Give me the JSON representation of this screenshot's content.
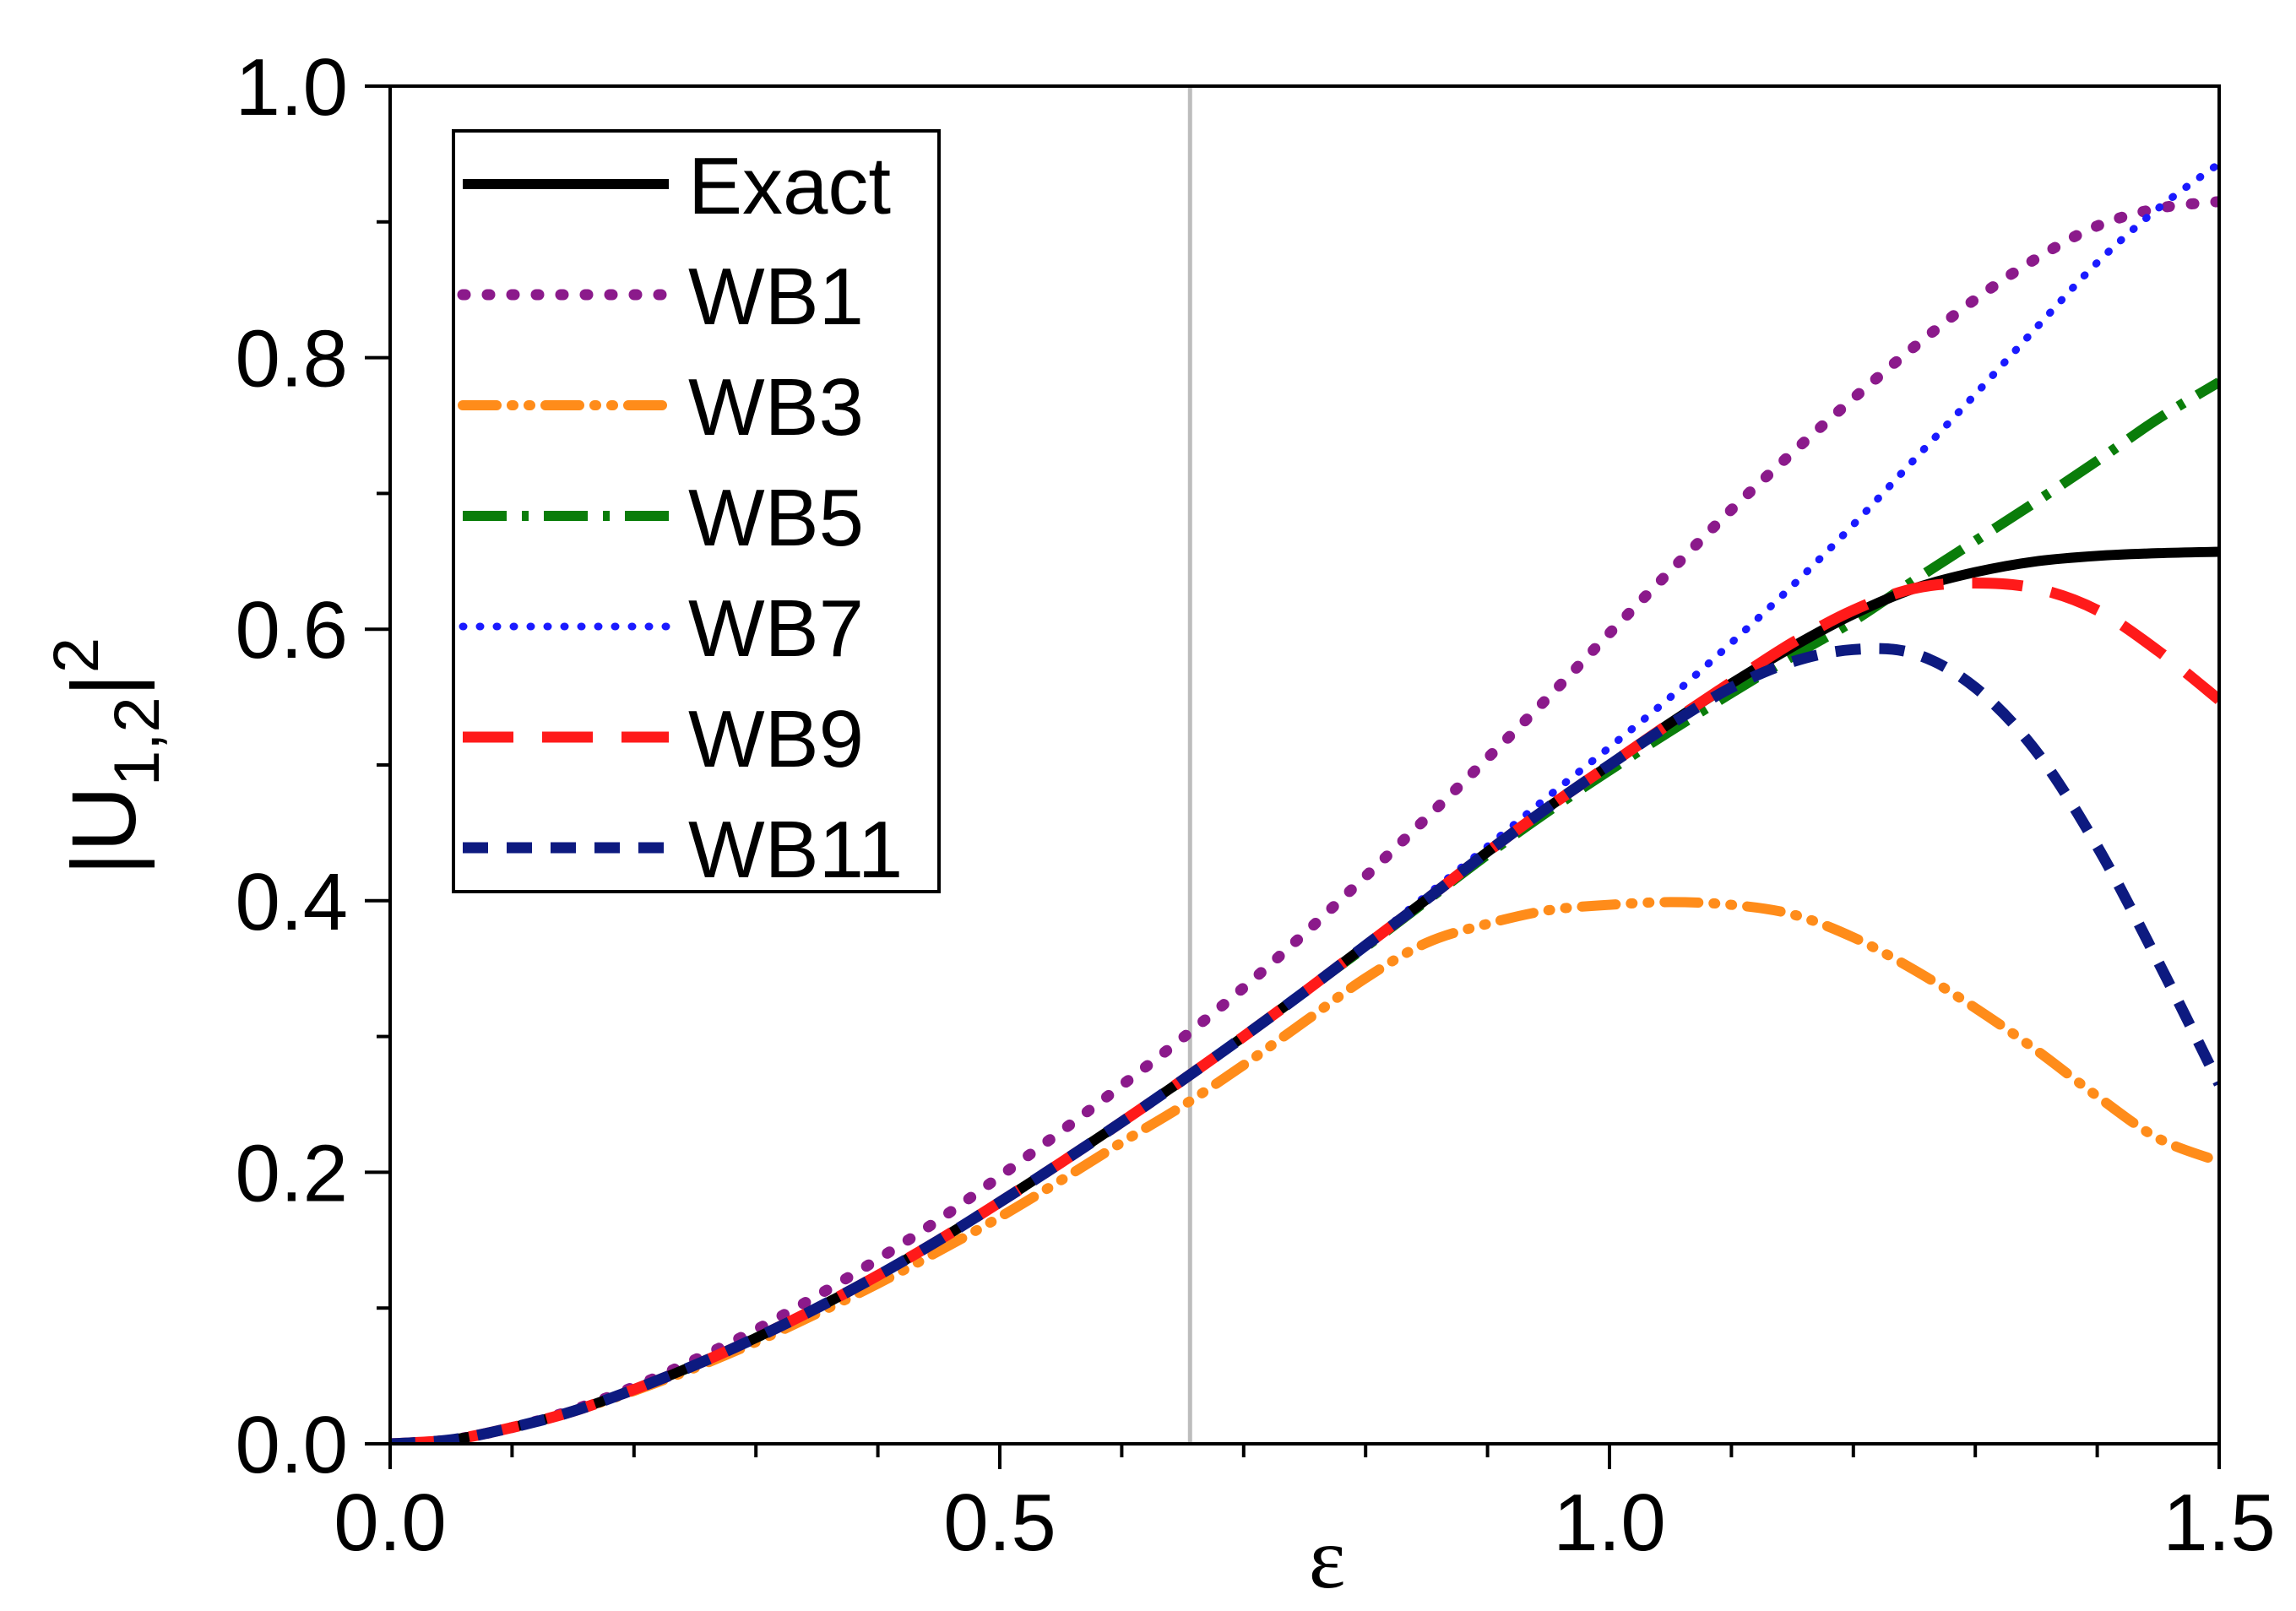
{
  "chart_data": {
    "type": "line",
    "title": "",
    "xlabel": "ε",
    "ylabel": {
      "main": "|U",
      "subscript": "1,2",
      "close": "|",
      "superscript": "2"
    },
    "xlim": [
      0.0,
      1.5
    ],
    "ylim": [
      0.0,
      1.0
    ],
    "x_ticks": [
      "0.0",
      "0.5",
      "1.0",
      "1.5"
    ],
    "y_ticks": [
      "0.0",
      "0.2",
      "0.4",
      "0.6",
      "0.8",
      "1.0"
    ],
    "vertical_reference_line": {
      "x": 0.656,
      "color": "#bdbdbd"
    },
    "grid": false,
    "legend_position": "top-left",
    "x": [
      0.0,
      0.05,
      0.1,
      0.15,
      0.2,
      0.25,
      0.3,
      0.35,
      0.4,
      0.45,
      0.5,
      0.55,
      0.6,
      0.65,
      0.7,
      0.75,
      0.8,
      0.85,
      0.9,
      0.95,
      1.0,
      1.05,
      1.1,
      1.15,
      1.2,
      1.25,
      1.3,
      1.35,
      1.4,
      1.45,
      1.5
    ],
    "series": [
      {
        "name": "Exact",
        "color": "#000000",
        "style": "solid",
        "values": [
          0.0,
          0.003,
          0.012,
          0.024,
          0.04,
          0.058,
          0.078,
          0.1,
          0.124,
          0.15,
          0.178,
          0.207,
          0.237,
          0.268,
          0.3,
          0.333,
          0.367,
          0.401,
          0.436,
          0.469,
          0.5,
          0.531,
          0.56,
          0.587,
          0.611,
          0.63,
          0.642,
          0.65,
          0.654,
          0.656,
          0.657
        ]
      },
      {
        "name": "WB1",
        "color": "#8b1a8b",
        "style": "dot",
        "values": [
          0.0,
          0.003,
          0.012,
          0.025,
          0.042,
          0.062,
          0.084,
          0.109,
          0.136,
          0.165,
          0.197,
          0.23,
          0.264,
          0.299,
          0.336,
          0.376,
          0.418,
          0.461,
          0.505,
          0.55,
          0.597,
          0.643,
          0.688,
          0.73,
          0.77,
          0.808,
          0.843,
          0.873,
          0.897,
          0.91,
          0.915
        ]
      },
      {
        "name": "WB3",
        "color": "#ff8c1a",
        "style": "dashdotdot",
        "values": [
          0.0,
          0.003,
          0.012,
          0.024,
          0.039,
          0.056,
          0.075,
          0.096,
          0.118,
          0.142,
          0.167,
          0.194,
          0.222,
          0.249,
          0.279,
          0.311,
          0.343,
          0.369,
          0.383,
          0.393,
          0.397,
          0.399,
          0.397,
          0.39,
          0.373,
          0.349,
          0.321,
          0.29,
          0.256,
          0.225,
          0.208
        ]
      },
      {
        "name": "WB5",
        "color": "#0a7d0a",
        "style": "dashdot",
        "values": [
          0.0,
          0.003,
          0.012,
          0.024,
          0.04,
          0.058,
          0.078,
          0.1,
          0.124,
          0.15,
          0.178,
          0.207,
          0.237,
          0.268,
          0.3,
          0.333,
          0.366,
          0.4,
          0.434,
          0.466,
          0.496,
          0.525,
          0.553,
          0.58,
          0.606,
          0.636,
          0.665,
          0.694,
          0.724,
          0.755,
          0.782
        ]
      },
      {
        "name": "WB7",
        "color": "#1a1aff",
        "style": "dot",
        "values": [
          0.0,
          0.003,
          0.012,
          0.024,
          0.04,
          0.058,
          0.078,
          0.1,
          0.124,
          0.15,
          0.178,
          0.207,
          0.237,
          0.268,
          0.3,
          0.334,
          0.368,
          0.404,
          0.44,
          0.477,
          0.513,
          0.55,
          0.59,
          0.632,
          0.677,
          0.725,
          0.773,
          0.822,
          0.87,
          0.91,
          0.943
        ]
      },
      {
        "name": "WB9",
        "color": "#ff1a1a",
        "style": "dash",
        "values": [
          0.0,
          0.003,
          0.012,
          0.024,
          0.04,
          0.058,
          0.078,
          0.1,
          0.124,
          0.15,
          0.178,
          0.207,
          0.237,
          0.268,
          0.3,
          0.333,
          0.367,
          0.401,
          0.436,
          0.469,
          0.5,
          0.531,
          0.561,
          0.59,
          0.614,
          0.63,
          0.634,
          0.63,
          0.614,
          0.584,
          0.548
        ]
      },
      {
        "name": "WB11",
        "color": "#0d1a80",
        "style": "shortdash",
        "values": [
          0.0,
          0.003,
          0.012,
          0.024,
          0.04,
          0.058,
          0.078,
          0.1,
          0.124,
          0.15,
          0.178,
          0.207,
          0.237,
          0.268,
          0.3,
          0.333,
          0.367,
          0.401,
          0.436,
          0.469,
          0.5,
          0.53,
          0.557,
          0.576,
          0.585,
          0.582,
          0.557,
          0.51,
          0.44,
          0.355,
          0.265
        ]
      }
    ]
  }
}
